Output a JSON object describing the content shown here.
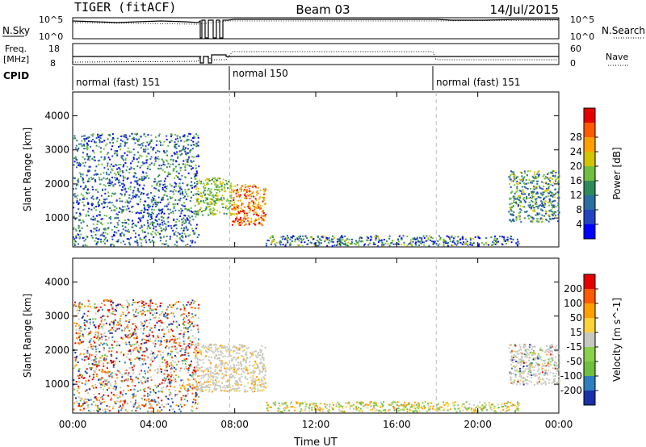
{
  "header": {
    "radar": "TIGER (fitACF)",
    "beam": "Beam 03",
    "date": "14/Jul/2015"
  },
  "nsky_panel": {
    "label": "N.Sky",
    "left_ticks": [
      "10^5",
      "10^0"
    ],
    "right_ticks": [
      "10^5",
      "10^0"
    ],
    "right_label": "N.Search"
  },
  "freq_panel": {
    "label_line1": "Freq.",
    "label_line2": "[MHz]",
    "left_ticks": [
      "18",
      "8"
    ],
    "right_ticks": [
      "60",
      "0"
    ],
    "right_label": "Nave"
  },
  "cpid_panel": {
    "label": "CPID",
    "modes": [
      "normal (fast) 151",
      "normal 150",
      "normal (fast) 151"
    ]
  },
  "chart_data": [
    {
      "type": "heatmap",
      "title": "",
      "xlabel": "",
      "ylabel": "Slant Range [km]",
      "x_ticks": [
        "00:00",
        "04:00",
        "08:00",
        "12:00",
        "16:00",
        "20:00",
        "00:00"
      ],
      "y_ticks": [
        "1000",
        "2000",
        "3000",
        "4000"
      ],
      "colorbar": {
        "label": "Power [dB]",
        "ticks": [
          "4",
          "8",
          "12",
          "16",
          "20",
          "24",
          "28"
        ],
        "colors": [
          "#0000ff",
          "#2244c0",
          "#2b6ea0",
          "#2e8b57",
          "#6fbf40",
          "#d4c400",
          "#ff9f00",
          "#ff5a00",
          "#e60000"
        ]
      },
      "regions": [
        {
          "hours": [
            0,
            6.2
          ],
          "range_km": [
            200,
            3500
          ],
          "dominant": "blue / green mixed"
        },
        {
          "hours": [
            6.0,
            7.8
          ],
          "range_km": [
            1100,
            2200
          ],
          "dominant": "green"
        },
        {
          "hours": [
            7.8,
            9.5
          ],
          "range_km": [
            800,
            2000
          ],
          "dominant": "orange / red"
        },
        {
          "hours": [
            9.5,
            22.0
          ],
          "range_km": [
            200,
            500
          ],
          "dominant": "blue / green near-range"
        },
        {
          "hours": [
            21.5,
            24.0
          ],
          "range_km": [
            900,
            2400
          ],
          "dominant": "green / blue"
        }
      ]
    },
    {
      "type": "heatmap",
      "title": "",
      "xlabel": "Time UT",
      "ylabel": "Slant Range [km]",
      "x_ticks": [
        "00:00",
        "04:00",
        "08:00",
        "12:00",
        "16:00",
        "20:00",
        "00:00"
      ],
      "y_ticks": [
        "1000",
        "2000",
        "3000",
        "4000"
      ],
      "colorbar": {
        "label": "Velocity [m s^-1]",
        "ticks": [
          "200",
          "100",
          "50",
          "15",
          "-15",
          "-50",
          "-100",
          "-200"
        ],
        "colors": [
          "#1a2fa8",
          "#2e7fbf",
          "#6fbf40",
          "#8bd04a",
          "#c8c8c0",
          "#ffd23a",
          "#ff9f00",
          "#ff5a00",
          "#e60000"
        ]
      },
      "regions": [
        {
          "hours": [
            0,
            6.2
          ],
          "range_km": [
            200,
            3500
          ],
          "dominant": "red / blue mixed"
        },
        {
          "hours": [
            6.0,
            9.5
          ],
          "range_km": [
            800,
            2200
          ],
          "dominant": "grey (ground scatter)"
        },
        {
          "hours": [
            9.5,
            22.0
          ],
          "range_km": [
            200,
            500
          ],
          "dominant": "yellow / green near-range"
        },
        {
          "hours": [
            21.5,
            24.0
          ],
          "range_km": [
            1000,
            2200
          ],
          "dominant": "grey"
        }
      ]
    }
  ]
}
